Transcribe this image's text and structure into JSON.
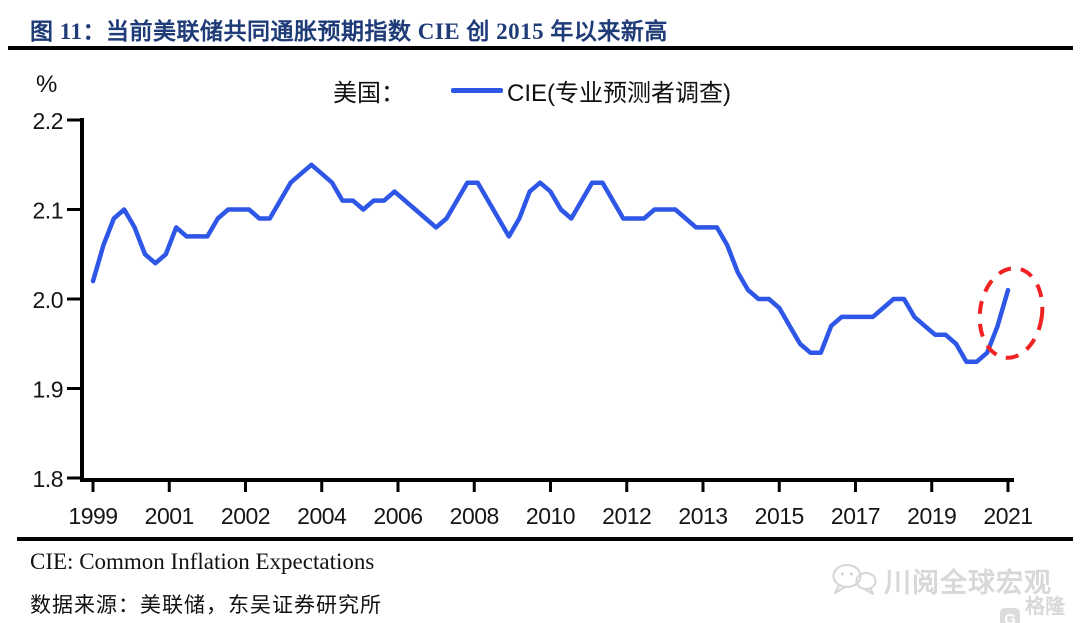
{
  "figure": {
    "title": "图 11：当前美联储共同通胀预期指数 CIE 创 2015 年以来新高",
    "unit_label": "%",
    "legend": {
      "region_label": "美国：",
      "series_label": "CIE(专业预测者调查)"
    },
    "footnote": "CIE: Common Inflation Expectations",
    "source": "数据来源：美联储，东吴证券研究所",
    "watermark_text": "川阅全球宏观",
    "logo_text": "格隆汇",
    "logo_letter": "G"
  },
  "colors": {
    "line": "#2F57E7",
    "title_text": "#1F3C78",
    "annotation": "#F02222",
    "axis": "#000000",
    "tick_text": "#151515",
    "watermark": "#D8D8D8"
  },
  "chart_data": {
    "type": "line",
    "title": "美国：CIE(专业预测者调查)",
    "ylabel": "%",
    "ylim": [
      1.8,
      2.2
    ],
    "ytick_labels": [
      "2.2",
      "2.1",
      "2.0",
      "1.9",
      "1.8"
    ],
    "xtick_labels": [
      "1999",
      "2001",
      "2002",
      "2004",
      "2006",
      "2008",
      "2010",
      "2012",
      "2013",
      "2015",
      "2017",
      "2019",
      "2021"
    ],
    "x_frequency": "quarterly",
    "x_start": "1999Q1",
    "x_end": "2021Q1",
    "grid": false,
    "legend_position": "top",
    "series": [
      {
        "name": "CIE(专业预测者调查)",
        "values": [
          2.02,
          2.06,
          2.09,
          2.1,
          2.08,
          2.05,
          2.04,
          2.05,
          2.08,
          2.07,
          2.07,
          2.07,
          2.09,
          2.1,
          2.1,
          2.1,
          2.09,
          2.09,
          2.11,
          2.13,
          2.14,
          2.15,
          2.14,
          2.13,
          2.11,
          2.11,
          2.1,
          2.11,
          2.11,
          2.12,
          2.11,
          2.1,
          2.09,
          2.08,
          2.09,
          2.11,
          2.13,
          2.13,
          2.11,
          2.09,
          2.07,
          2.09,
          2.12,
          2.13,
          2.12,
          2.1,
          2.09,
          2.11,
          2.13,
          2.13,
          2.11,
          2.09,
          2.09,
          2.09,
          2.1,
          2.1,
          2.1,
          2.09,
          2.08,
          2.08,
          2.08,
          2.06,
          2.03,
          2.01,
          2.0,
          2.0,
          1.99,
          1.97,
          1.95,
          1.94,
          1.94,
          1.97,
          1.98,
          1.98,
          1.98,
          1.98,
          1.99,
          2.0,
          2.0,
          1.98,
          1.97,
          1.96,
          1.96,
          1.95,
          1.93,
          1.93,
          1.94,
          1.97,
          2.01
        ]
      }
    ],
    "annotation": {
      "shape": "dashed-ellipse",
      "target": "2021Q1 final point (new high since 2015)",
      "color": "#F02222"
    }
  }
}
